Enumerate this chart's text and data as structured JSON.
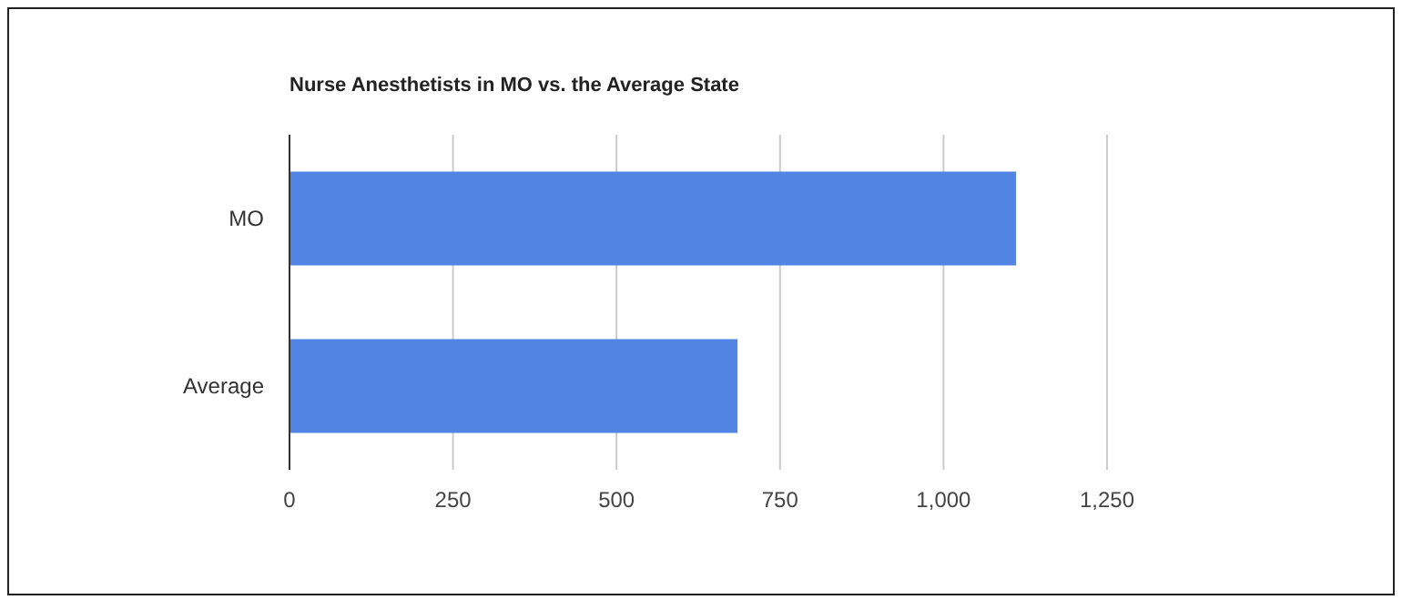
{
  "chart_data": {
    "type": "bar",
    "orientation": "horizontal",
    "title": "Nurse Anesthetists in MO vs. the Average State",
    "categories": [
      "MO",
      "Average"
    ],
    "values": [
      1111,
      685
    ],
    "color": "#5285e3",
    "xlim": [
      0,
      1250
    ],
    "xticks": [
      0,
      250,
      500,
      {
        "value": 750,
        "label": "750"
      },
      {
        "value": 1000,
        "label": "1,000"
      },
      {
        "value": 1250,
        "label": "1,250"
      }
    ],
    "grid": "x"
  }
}
